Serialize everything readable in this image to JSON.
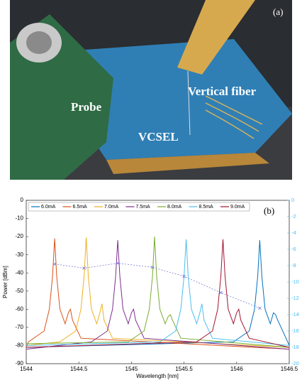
{
  "photo": {
    "label": "(a)",
    "annotations": [
      "Probe",
      "Vertical fiber",
      "VCSEL"
    ]
  },
  "chart_data": {
    "type": "line",
    "label": "(b)",
    "xlabel": "Wavelength [nm]",
    "ylabel": "Power [dBm]",
    "xlim": [
      1544,
      1546.5
    ],
    "xticks": [
      1544,
      1544.5,
      1545,
      1545.5,
      1546,
      1546.5
    ],
    "ylim": [
      -90,
      0
    ],
    "yticks": [
      0,
      -10,
      -20,
      -30,
      -40,
      -50,
      -60,
      -70,
      -80,
      -90
    ],
    "y2lim": [
      -20,
      0
    ],
    "y2ticks": [
      0,
      -2,
      -4,
      -6,
      -8,
      -10,
      -12,
      -14,
      -16,
      -18,
      -20
    ],
    "y2color": "#4dbeee",
    "legend": "top",
    "series": [
      {
        "name": "6.0mA",
        "color": "#0072bd",
        "x": [
          1544,
          1545.97,
          1546.12,
          1546.17,
          1546.2,
          1546.22,
          1546.24,
          1546.27,
          1546.32,
          1546.35,
          1546.37,
          1546.39,
          1546.47,
          1546.5
        ],
        "values": [
          -81,
          -78,
          -72,
          -60,
          -42,
          -22,
          -42,
          -60,
          -68,
          -62,
          -63,
          -66,
          -76,
          -80
        ]
      },
      {
        "name": "6.5mA",
        "color": "#d95319",
        "x": [
          1544,
          1544.02,
          1544.17,
          1544.22,
          1544.25,
          1544.27,
          1544.29,
          1544.32,
          1544.37,
          1544.4,
          1544.42,
          1544.44,
          1544.52,
          1546.5
        ],
        "values": [
          -81,
          -78,
          -72,
          -60,
          -42,
          -21,
          -42,
          -60,
          -68,
          -62,
          -60,
          -66,
          -76,
          -82
        ]
      },
      {
        "name": "7.0mA",
        "color": "#edb120",
        "x": [
          1544,
          1544.32,
          1544.47,
          1544.52,
          1544.55,
          1544.57,
          1544.59,
          1544.62,
          1544.67,
          1544.7,
          1544.72,
          1544.74,
          1544.82,
          1546.5
        ],
        "values": [
          -80,
          -78,
          -72,
          -60,
          -42,
          -20.5,
          -42,
          -60,
          -68,
          -62,
          -57,
          -66,
          -76,
          -81
        ]
      },
      {
        "name": "7.5mA",
        "color": "#7e2f8e",
        "x": [
          1544,
          1544.62,
          1544.77,
          1544.82,
          1544.85,
          1544.87,
          1544.89,
          1544.92,
          1544.97,
          1545,
          1545.02,
          1545.04,
          1545.12,
          1546.5
        ],
        "values": [
          -82,
          -78,
          -72,
          -60,
          -42,
          -22,
          -42,
          -60,
          -68,
          -62,
          -60,
          -66,
          -76,
          -82
        ]
      },
      {
        "name": "8.0mA",
        "color": "#77ac30",
        "x": [
          1544,
          1544.97,
          1545.12,
          1545.17,
          1545.2,
          1545.22,
          1545.24,
          1545.27,
          1545.32,
          1545.35,
          1545.37,
          1545.39,
          1545.47,
          1546.5
        ],
        "values": [
          -79,
          -78,
          -72,
          -60,
          -42,
          -20,
          -42,
          -60,
          -68,
          -64,
          -63,
          -66,
          -76,
          -81
        ]
      },
      {
        "name": "8.5mA",
        "color": "#4dbeee",
        "x": [
          1544,
          1545.27,
          1545.42,
          1545.47,
          1545.5,
          1545.52,
          1545.54,
          1545.57,
          1545.62,
          1545.65,
          1545.67,
          1545.69,
          1545.77,
          1546.5
        ],
        "values": [
          -80,
          -78,
          -72,
          -60,
          -42,
          -21.5,
          -42,
          -60,
          -68,
          -62,
          -57,
          -66,
          -76,
          -80
        ]
      },
      {
        "name": "9.0mA",
        "color": "#a2142f",
        "x": [
          1544,
          1545.62,
          1545.77,
          1545.82,
          1545.85,
          1545.87,
          1545.89,
          1545.92,
          1545.97,
          1546,
          1546.02,
          1546.04,
          1546.12,
          1546.5
        ],
        "values": [
          -81,
          -78,
          -72,
          -60,
          -42,
          -21.5,
          -42,
          -60,
          -68,
          -62,
          -60,
          -66,
          -76,
          -81
        ]
      },
      {
        "color": "#7b7bd6",
        "axis": "y2",
        "dashed": true,
        "x": [
          1544.27,
          1544.55,
          1544.87,
          1545.2,
          1545.5,
          1545.85,
          1546.22
        ],
        "values": [
          -7.8,
          -8.3,
          -7.7,
          -8.2,
          -9.3,
          -11.3,
          -13.2
        ]
      }
    ]
  }
}
